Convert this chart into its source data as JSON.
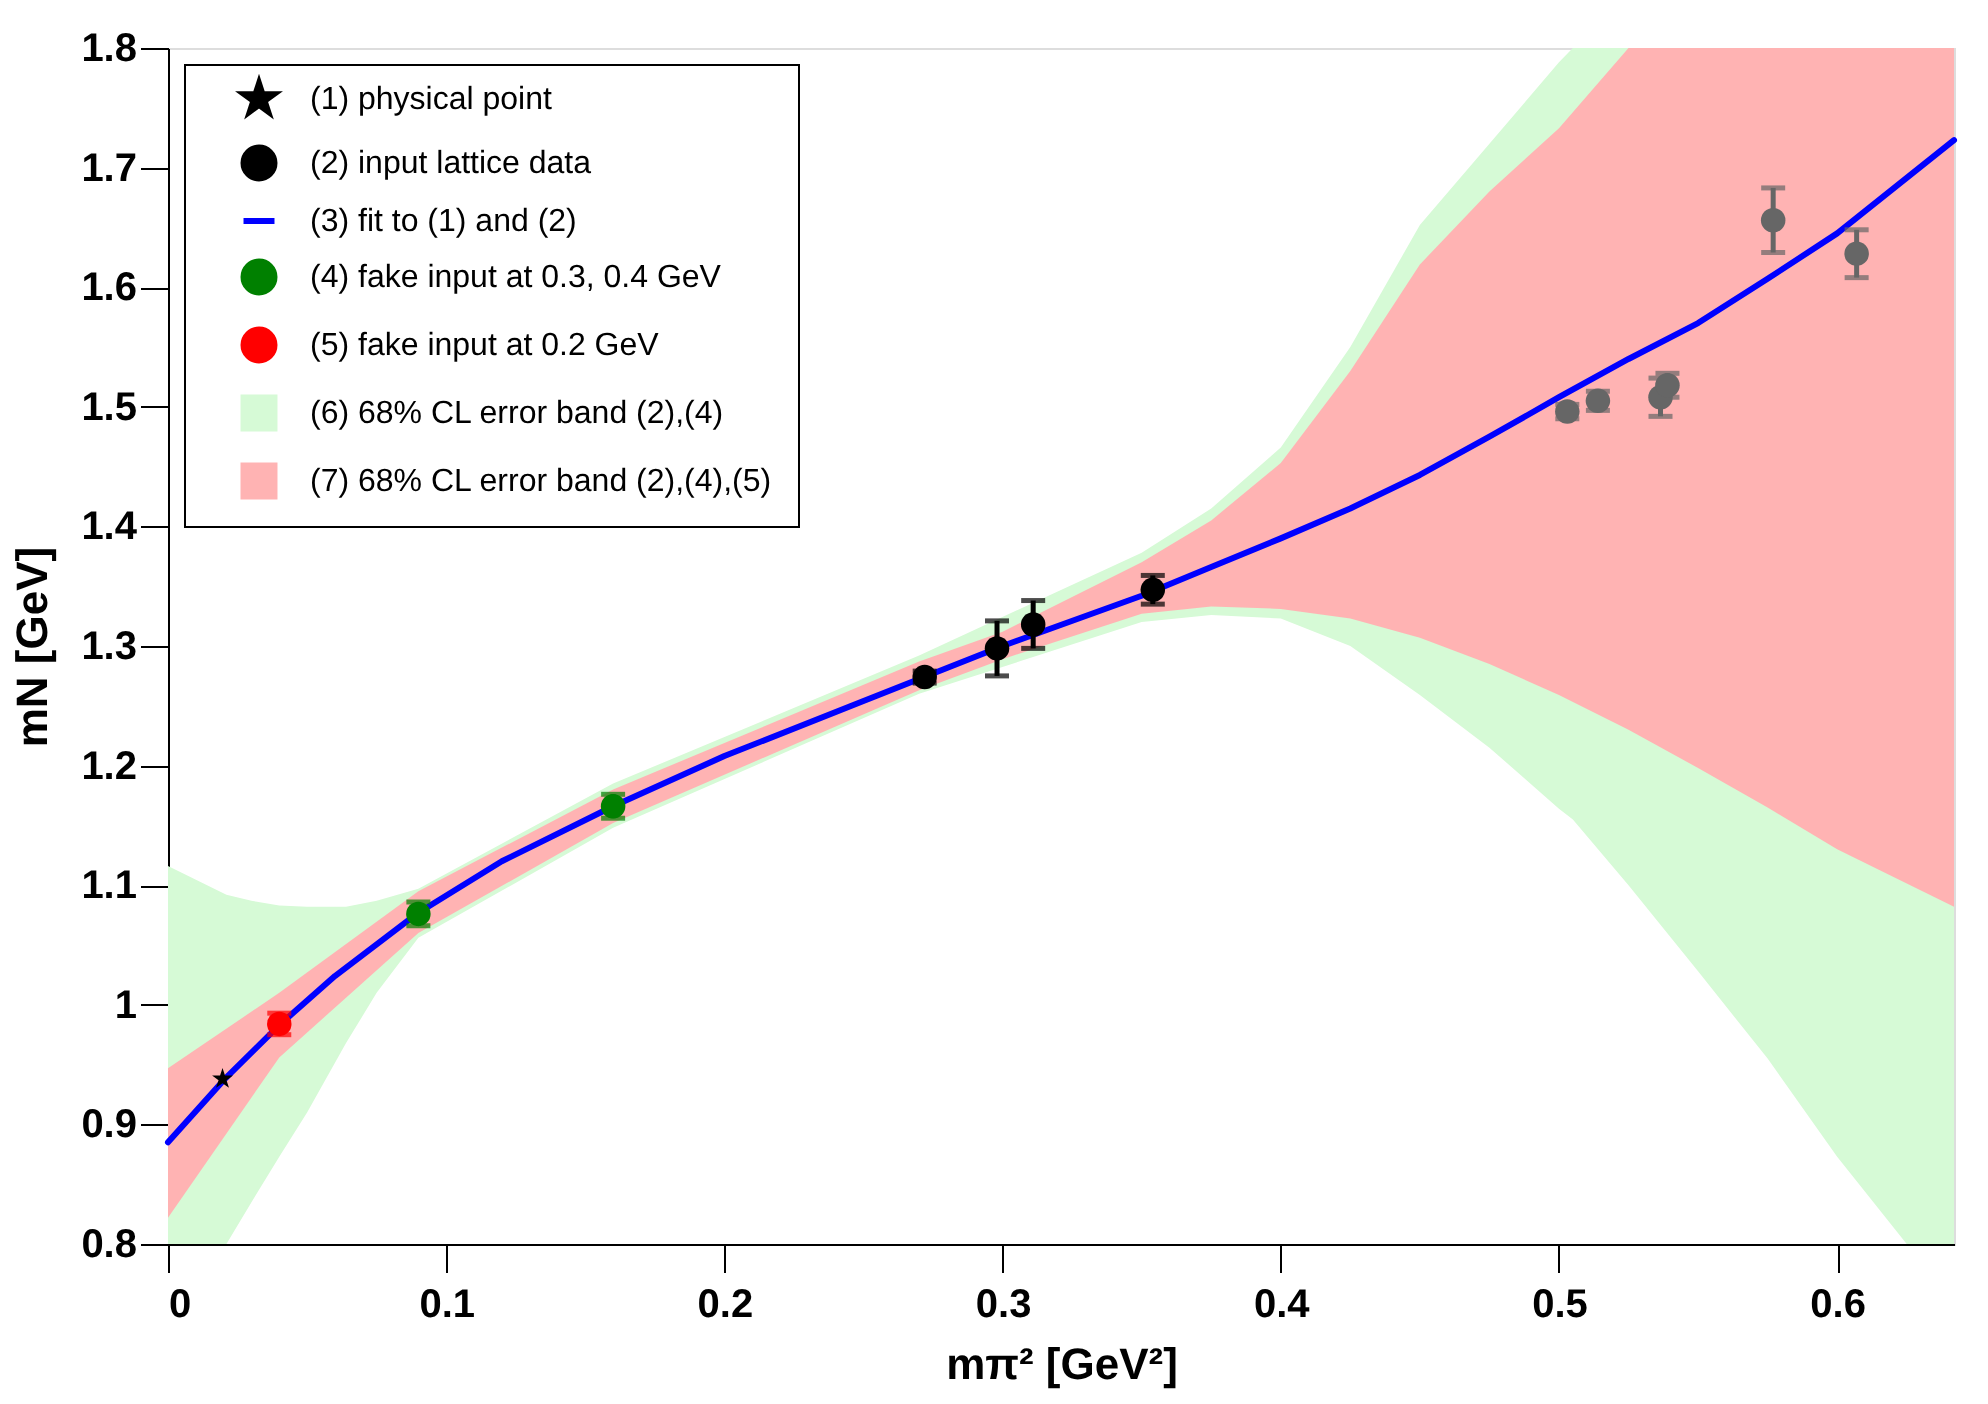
{
  "chart_data": {
    "type": "scatter",
    "xlabel": "mπ² [GeV²]",
    "ylabel": "mN [GeV]",
    "xlim": [
      0,
      0.642
    ],
    "xticks": [
      0,
      0.1,
      0.2,
      0.3,
      0.4,
      0.5,
      0.6
    ],
    "ylim": [
      0.8,
      1.8
    ],
    "yticks": [
      0.8,
      0.9,
      1,
      1.1,
      1.2,
      1.3,
      1.4,
      1.5,
      1.6,
      1.7,
      1.8
    ],
    "grid": false,
    "legend": "top left",
    "series": [
      {
        "name": "(1)  physical point",
        "marker": "star",
        "color": "#000000",
        "x": [
          0.0196
        ],
        "values": [
          0.938
        ]
      },
      {
        "name": "(2)  input lattice data",
        "marker": "circle",
        "color": "#000000",
        "x": [
          0.272,
          0.298,
          0.311,
          0.354
        ],
        "values": [
          1.274,
          1.298,
          1.318,
          1.347
        ],
        "errors": [
          0.005,
          0.023,
          0.02,
          0.012
        ]
      },
      {
        "name": "(3)  fit to (1) and (2)",
        "type": "line",
        "marker": "none",
        "line_style": "solid",
        "color": "#0000ff",
        "x": [
          0,
          0.02,
          0.04,
          0.06,
          0.09,
          0.12,
          0.16,
          0.2,
          0.25,
          0.3,
          0.35,
          0.375,
          0.4,
          0.425,
          0.45,
          0.475,
          0.5,
          0.525,
          0.55,
          0.575,
          0.6,
          0.642
        ],
        "values": [
          0.885,
          0.937,
          0.983,
          1.024,
          1.077,
          1.12,
          1.166,
          1.208,
          1.254,
          1.3,
          1.342,
          1.366,
          1.39,
          1.415,
          1.443,
          1.475,
          1.508,
          1.54,
          1.57,
          1.607,
          1.645,
          1.723
        ]
      },
      {
        "name": "(4)  fake input at 0.3, 0.4 GeV",
        "marker": "circle",
        "color": "#008000",
        "x": [
          0.09,
          0.16
        ],
        "values": [
          1.076,
          1.166
        ],
        "errors": [
          0.01,
          0.01
        ]
      },
      {
        "name": "(5)  fake input at 0.2 GeV",
        "marker": "circle",
        "color": "#ff0000",
        "x": [
          0.04
        ],
        "values": [
          0.984
        ],
        "errors": [
          0.009
        ]
      },
      {
        "name": "(6)  68% CL error band (2),(4)",
        "type": "area",
        "color": "#d6fad6",
        "x": [
          0,
          0.021,
          0.03,
          0.04,
          0.05,
          0.064,
          0.075,
          0.09,
          0.16,
          0.27,
          0.35,
          0.375,
          0.4,
          0.425,
          0.45,
          0.475,
          0.5,
          0.505,
          0.525,
          0.55,
          0.575,
          0.6,
          0.625,
          0.642
        ],
        "values": [
          null,
          null,
          null,
          null,
          null,
          null,
          null,
          null,
          null,
          null,
          null,
          null,
          null,
          null,
          null,
          null,
          null,
          null,
          null,
          null,
          null,
          null,
          null,
          null
        ],
        "upper": [
          1.116,
          1.092,
          1.087,
          1.083,
          1.082,
          1.082,
          1.087,
          1.097,
          1.185,
          1.292,
          1.378,
          1.415,
          1.466,
          1.55,
          1.652,
          1.72,
          1.788,
          1.8,
          1.8,
          1.8,
          1.8,
          1.8,
          1.8,
          1.8
        ],
        "lower": [
          0.8,
          0.8,
          0.835,
          0.873,
          0.91,
          0.968,
          1.01,
          1.056,
          1.148,
          1.26,
          1.32,
          1.326,
          1.323,
          1.3,
          1.259,
          1.215,
          1.164,
          1.155,
          1.1,
          1.028,
          0.955,
          0.873,
          0.8,
          0.8
        ]
      },
      {
        "name": "(7)  68% CL error band (2),(4),(5)",
        "type": "area",
        "color": "#ffb3b3",
        "x": [
          0,
          0.04,
          0.09,
          0.16,
          0.27,
          0.3,
          0.35,
          0.375,
          0.4,
          0.425,
          0.45,
          0.475,
          0.5,
          0.525,
          0.55,
          0.575,
          0.6,
          0.642
        ],
        "values": [
          null,
          null,
          null,
          null,
          null,
          null,
          null,
          null,
          null,
          null,
          null,
          null,
          null,
          null,
          null,
          null,
          null,
          null
        ],
        "upper": [
          0.947,
          1.01,
          1.095,
          1.18,
          1.287,
          1.312,
          1.37,
          1.405,
          1.453,
          1.53,
          1.619,
          1.68,
          1.733,
          1.8,
          1.8,
          1.8,
          1.8,
          1.8
        ],
        "lower": [
          0.822,
          0.956,
          1.06,
          1.152,
          1.263,
          1.289,
          1.327,
          1.333,
          1.331,
          1.323,
          1.307,
          1.285,
          1.259,
          1.23,
          1.198,
          1.165,
          1.13,
          1.082
        ]
      },
      {
        "marker": "circle",
        "color": "#666666",
        "x": [
          0.503,
          0.514,
          0.5365,
          0.539,
          0.577,
          0.607
        ],
        "values": [
          1.496,
          1.505,
          1.508,
          1.518,
          1.656,
          1.628
        ],
        "errors": [
          0.006,
          0.008,
          0.016,
          0.01,
          0.027,
          0.02
        ]
      }
    ]
  }
}
